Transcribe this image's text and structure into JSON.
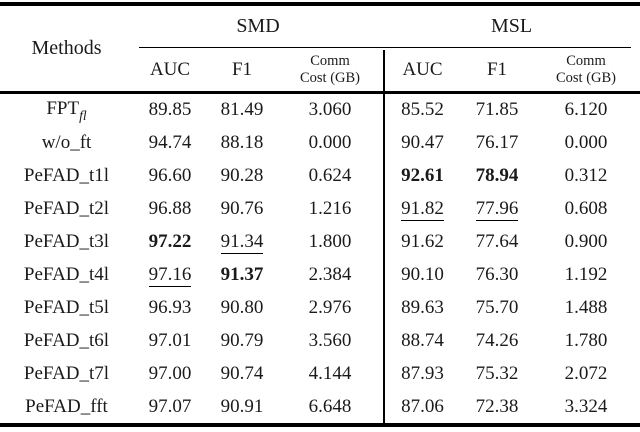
{
  "colors": {
    "background": "#ffffff",
    "text": "#1a1a1a",
    "rule": "#000000"
  },
  "table": {
    "header": {
      "methods": "Methods",
      "group_smd": "SMD",
      "group_msl": "MSL",
      "smd_auc": "AUC",
      "smd_f1": "F1",
      "smd_comm_line1": "Comm",
      "smd_comm_line2": "Cost (GB)",
      "msl_auc": "AUC",
      "msl_f1": "F1",
      "msl_comm_line1": "Comm",
      "msl_comm_line2": "Cost (GB)"
    },
    "rows": [
      {
        "method": "FPT",
        "method_sub": "fl",
        "cells": [
          {
            "v": "89.85"
          },
          {
            "v": "81.49"
          },
          {
            "v": "3.060"
          },
          {
            "v": "85.52"
          },
          {
            "v": "71.85"
          },
          {
            "v": "6.120"
          }
        ]
      },
      {
        "method": "w/o_ft",
        "cells": [
          {
            "v": "94.74"
          },
          {
            "v": "88.18"
          },
          {
            "v": "0.000"
          },
          {
            "v": "90.47"
          },
          {
            "v": "76.17"
          },
          {
            "v": "0.000"
          }
        ]
      },
      {
        "method": "PeFAD_t1l",
        "cells": [
          {
            "v": "96.60"
          },
          {
            "v": "90.28"
          },
          {
            "v": "0.624"
          },
          {
            "v": "92.61",
            "b": true
          },
          {
            "v": "78.94",
            "b": true
          },
          {
            "v": "0.312"
          }
        ]
      },
      {
        "method": "PeFAD_t2l",
        "cells": [
          {
            "v": "96.88"
          },
          {
            "v": "90.76"
          },
          {
            "v": "1.216"
          },
          {
            "v": "91.82",
            "u": true
          },
          {
            "v": "77.96",
            "u": true
          },
          {
            "v": "0.608"
          }
        ]
      },
      {
        "method": "PeFAD_t3l",
        "cells": [
          {
            "v": "97.22",
            "b": true
          },
          {
            "v": "91.34",
            "u": true
          },
          {
            "v": "1.800"
          },
          {
            "v": "91.62"
          },
          {
            "v": "77.64"
          },
          {
            "v": "0.900"
          }
        ]
      },
      {
        "method": "PeFAD_t4l",
        "cells": [
          {
            "v": "97.16",
            "u": true
          },
          {
            "v": "91.37",
            "b": true
          },
          {
            "v": "2.384"
          },
          {
            "v": "90.10"
          },
          {
            "v": "76.30"
          },
          {
            "v": "1.192"
          }
        ]
      },
      {
        "method": "PeFAD_t5l",
        "cells": [
          {
            "v": "96.93"
          },
          {
            "v": "90.80"
          },
          {
            "v": "2.976"
          },
          {
            "v": "89.63"
          },
          {
            "v": "75.70"
          },
          {
            "v": "1.488"
          }
        ]
      },
      {
        "method": "PeFAD_t6l",
        "cells": [
          {
            "v": "97.01"
          },
          {
            "v": "90.79"
          },
          {
            "v": "3.560"
          },
          {
            "v": "88.74"
          },
          {
            "v": "74.26"
          },
          {
            "v": "1.780"
          }
        ]
      },
      {
        "method": "PeFAD_t7l",
        "cells": [
          {
            "v": "97.00"
          },
          {
            "v": "90.74"
          },
          {
            "v": "4.144"
          },
          {
            "v": "87.93"
          },
          {
            "v": "75.32"
          },
          {
            "v": "2.072"
          }
        ]
      },
      {
        "method": "PeFAD_fft",
        "cells": [
          {
            "v": "97.07"
          },
          {
            "v": "90.91"
          },
          {
            "v": "6.648"
          },
          {
            "v": "87.06"
          },
          {
            "v": "72.38"
          },
          {
            "v": "3.324"
          }
        ]
      }
    ]
  }
}
